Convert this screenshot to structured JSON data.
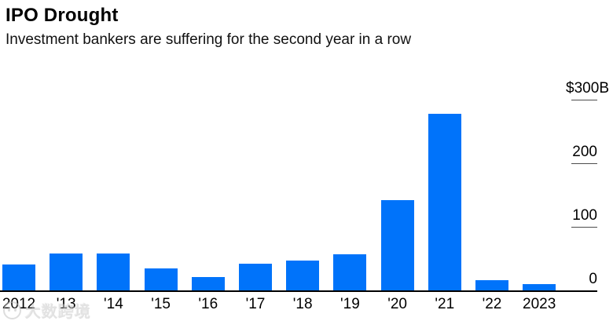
{
  "header": {
    "title": "IPO Drought",
    "subtitle": "Investment bankers are suffering for the second year in a row"
  },
  "chart_data": {
    "type": "bar",
    "title": "IPO Drought",
    "subtitle": "Investment bankers are suffering for the second year in a row",
    "categories": [
      "2012",
      "'13",
      "'14",
      "'15",
      "'16",
      "'17",
      "'18",
      "'19",
      "'20",
      "'21",
      "'22",
      "2023"
    ],
    "values": [
      41,
      59,
      59,
      35,
      22,
      43,
      47,
      58,
      143,
      278,
      17,
      11
    ],
    "unit": "billions of US dollars",
    "xlabel": "",
    "ylabel": "",
    "ylim": [
      0,
      300
    ],
    "yticks": [
      {
        "value": 300,
        "label": "$300B"
      },
      {
        "value": 200,
        "label": "200"
      },
      {
        "value": 100,
        "label": "100"
      },
      {
        "value": 0,
        "label": "0"
      }
    ],
    "grid": false,
    "legend": "none",
    "bar_color": "#0073fa"
  },
  "watermark": {
    "text": "大数跨境",
    "logo_icon": "round-face-logo"
  },
  "colors": {
    "bar_blue": "#0073fa",
    "axis_line": "#000000",
    "tick_line": "#4d4d4d",
    "text": "#000000",
    "watermark_gray": "#cbcbcb"
  }
}
